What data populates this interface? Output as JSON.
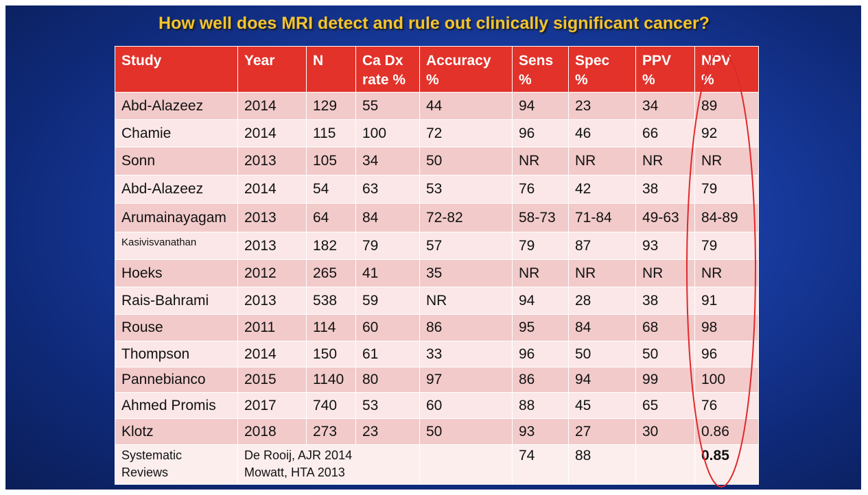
{
  "title": "How well does MRI detect and rule out clinically significant cancer?",
  "table": {
    "header": [
      [
        "Study"
      ],
      [
        "Year"
      ],
      [
        "N"
      ],
      [
        "Ca Dx",
        "rate %"
      ],
      [
        "Accuracy",
        "%"
      ],
      [
        "Sens",
        "%"
      ],
      [
        "Spec",
        "%"
      ],
      [
        "PPV",
        "%"
      ],
      [
        "NPV",
        "%"
      ]
    ],
    "rows": [
      [
        "Abd-Alazeez",
        "2014",
        "129",
        "55",
        "44",
        "94",
        "23",
        "34",
        "89"
      ],
      [
        "Chamie",
        "2014",
        "115",
        "100",
        "72",
        "96",
        "46",
        "66",
        "92"
      ],
      [
        "Sonn",
        "2013",
        "105",
        "34",
        "50",
        "NR",
        "NR",
        "NR",
        "NR"
      ],
      [
        "Abd-Alazeez",
        "2014",
        "54",
        "63",
        "53",
        "76",
        "42",
        "38",
        "79"
      ],
      [
        "Arumainayagam",
        "2013",
        "64",
        "84",
        "72-82",
        "58-73",
        "71-84",
        "49-63",
        "84-89"
      ],
      [
        "Kasivisvanathan",
        "2013",
        "182",
        "79",
        "57",
        "79",
        "87",
        "93",
        "79"
      ],
      [
        "Hoeks",
        "2012",
        "265",
        "41",
        "35",
        "NR",
        "NR",
        "NR",
        "NR"
      ],
      [
        "Rais-Bahrami",
        "2013",
        "538",
        "59",
        "NR",
        "94",
        "28",
        "38",
        "91"
      ],
      [
        "Rouse",
        "2011",
        "114",
        "60",
        "86",
        "95",
        "84",
        "68",
        "98"
      ],
      [
        "Thompson",
        "2014",
        "150",
        "61",
        "33",
        "96",
        "50",
        "50",
        "96"
      ],
      [
        "Pannebianco",
        "2015",
        "1140",
        "80",
        "97",
        "86",
        "94",
        "99",
        "100"
      ],
      [
        "Ahmed Promis",
        "2017",
        "740",
        "53",
        "60",
        "88",
        "45",
        "65",
        "76"
      ],
      [
        "Klotz",
        "2018",
        "273",
        "23",
        "50",
        "93",
        "27",
        "30",
        "0.86"
      ]
    ],
    "footer": {
      "study": [
        "Systematic",
        "Reviews"
      ],
      "references": [
        "De Rooij, AJR 2014",
        "Mowatt, HTA 2013"
      ],
      "sens": "74",
      "spec": "88",
      "npv": "0.85"
    }
  }
}
